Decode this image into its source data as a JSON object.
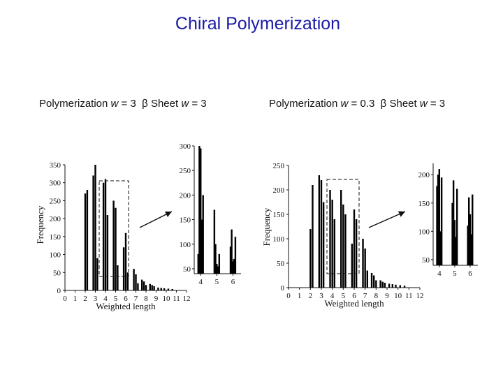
{
  "title": "Chiral Polymerization",
  "panels": [
    {
      "prefix": "Polymerization ",
      "w_symbol": "w",
      "w_value": " = 3",
      "beta_text": "  β Sheet ",
      "w2_symbol": "w",
      "w2_value": " = 3"
    },
    {
      "prefix": "Polymerization ",
      "w_symbol": "w",
      "w_value": " = 0.3",
      "beta_text": "  β Sheet ",
      "w2_symbol": "w",
      "w2_value": " = 3"
    }
  ],
  "chart_data": [
    {
      "type": "bar",
      "xlabel": "Weighted length",
      "ylabel": "Frequency",
      "xlim": [
        0,
        12
      ],
      "ylim": [
        0,
        350
      ],
      "xticks": [
        0,
        1,
        2,
        3,
        4,
        5,
        6,
        7,
        8,
        9,
        10,
        11,
        12
      ],
      "yticks": [
        0,
        50,
        100,
        150,
        200,
        250,
        300,
        350
      ],
      "x": [
        2.0,
        2.2,
        2.8,
        3.0,
        3.2,
        3.8,
        4.0,
        4.2,
        4.8,
        5.0,
        5.2,
        5.8,
        6.0,
        6.2,
        6.8,
        7.0,
        7.2,
        7.6,
        7.8,
        8.0,
        8.4,
        8.6,
        8.8,
        9.2,
        9.5,
        9.8,
        10.2,
        10.6
      ],
      "values": [
        270,
        280,
        320,
        350,
        90,
        300,
        310,
        210,
        250,
        230,
        70,
        120,
        160,
        50,
        60,
        45,
        20,
        30,
        25,
        15,
        18,
        15,
        12,
        8,
        7,
        6,
        5,
        4
      ],
      "inset": {
        "xlim": [
          3.6,
          6.5
        ],
        "ylim": [
          40,
          300
        ],
        "xticks": [
          4,
          5,
          6
        ],
        "yticks": [
          50,
          100,
          150,
          200,
          250,
          300
        ],
        "x": [
          3.85,
          3.92,
          4.0,
          4.06,
          4.15,
          4.85,
          4.92,
          5.0,
          5.06,
          5.15,
          5.85,
          5.92,
          6.0,
          6.06,
          6.15
        ],
        "values": [
          80,
          300,
          295,
          150,
          200,
          170,
          100,
          60,
          55,
          80,
          95,
          130,
          65,
          70,
          115
        ]
      }
    },
    {
      "type": "bar",
      "xlabel": "Weighted length",
      "ylabel": "Frequency",
      "xlim": [
        0,
        12
      ],
      "ylim": [
        0,
        250
      ],
      "xticks": [
        0,
        1,
        2,
        3,
        4,
        5,
        6,
        7,
        8,
        9,
        10,
        11,
        12
      ],
      "yticks": [
        0,
        50,
        100,
        150,
        200,
        250
      ],
      "x": [
        2.0,
        2.2,
        2.8,
        3.0,
        3.2,
        3.8,
        4.0,
        4.2,
        4.8,
        5.0,
        5.2,
        5.8,
        6.0,
        6.2,
        6.8,
        7.0,
        7.2,
        7.6,
        7.8,
        8.0,
        8.4,
        8.6,
        8.8,
        9.2,
        9.5,
        9.8,
        10.2,
        10.6
      ],
      "values": [
        120,
        210,
        230,
        220,
        175,
        200,
        180,
        140,
        200,
        170,
        150,
        90,
        160,
        140,
        100,
        80,
        35,
        30,
        25,
        15,
        15,
        12,
        10,
        8,
        7,
        6,
        5,
        4
      ],
      "inset": {
        "xlim": [
          3.6,
          6.5
        ],
        "ylim": [
          40,
          220
        ],
        "xticks": [
          4,
          5,
          6
        ],
        "yticks": [
          50,
          100,
          150,
          200
        ],
        "x": [
          3.85,
          3.92,
          4.0,
          4.06,
          4.15,
          4.85,
          4.92,
          5.0,
          5.06,
          5.15,
          5.85,
          5.92,
          6.0,
          6.06,
          6.15
        ],
        "values": [
          180,
          200,
          210,
          100,
          195,
          150,
          190,
          120,
          90,
          175,
          110,
          160,
          130,
          95,
          165
        ]
      }
    }
  ]
}
